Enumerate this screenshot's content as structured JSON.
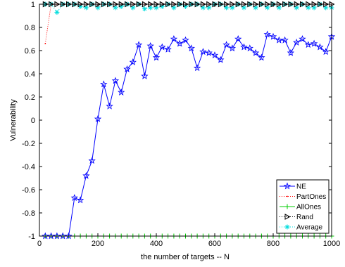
{
  "chart_data": {
    "type": "line",
    "xlabel": "the number of targets -- N",
    "ylabel": "Vulnerability",
    "xlim": [
      0,
      1000
    ],
    "ylim": [
      -1,
      1
    ],
    "xticks": [
      0,
      200,
      400,
      600,
      800,
      1000
    ],
    "yticks": [
      -1,
      -0.8,
      -0.6,
      -0.4,
      -0.2,
      0,
      0.2,
      0.4,
      0.6,
      0.8,
      1
    ],
    "xtick_labels": [
      "0",
      "200",
      "400",
      "600",
      "800",
      "1000"
    ],
    "ytick_labels": [
      "-1",
      "-0.8",
      "-0.6",
      "-0.4",
      "-0.2",
      "0",
      "0.2",
      "0.4",
      "0.6",
      "0.8",
      "1"
    ],
    "grid": false,
    "legend_position": "bottom-right",
    "x": [
      20,
      40,
      60,
      80,
      100,
      120,
      140,
      160,
      180,
      200,
      220,
      240,
      260,
      280,
      300,
      320,
      340,
      360,
      380,
      400,
      420,
      440,
      460,
      480,
      500,
      520,
      540,
      560,
      580,
      600,
      620,
      640,
      660,
      680,
      700,
      720,
      740,
      760,
      780,
      800,
      820,
      840,
      860,
      880,
      900,
      920,
      940,
      960,
      980,
      1000
    ],
    "series": [
      {
        "name": "NE",
        "color": "#0000ff",
        "marker": "star",
        "linestyle": "solid",
        "values": [
          -1,
          -1,
          -1,
          -1,
          -1,
          -0.67,
          -0.69,
          -0.48,
          -0.35,
          0.01,
          0.31,
          0.12,
          0.34,
          0.24,
          0.44,
          0.5,
          0.65,
          0.38,
          0.64,
          0.54,
          0.63,
          0.61,
          0.7,
          0.66,
          0.69,
          0.62,
          0.45,
          0.59,
          0.58,
          0.56,
          0.52,
          0.65,
          0.62,
          0.7,
          0.63,
          0.62,
          0.58,
          0.54,
          0.74,
          0.72,
          0.69,
          0.69,
          0.58,
          0.67,
          0.7,
          0.65,
          0.66,
          0.63,
          0.59,
          0.72
        ]
      },
      {
        "name": "PartOnes",
        "color": "#ff0000",
        "marker": "dot",
        "linestyle": "dotted",
        "values": [
          0.66,
          1,
          1,
          1,
          1,
          1,
          1,
          1,
          1,
          1,
          1,
          1,
          1,
          1,
          1,
          1,
          1,
          1,
          1,
          1,
          1,
          1,
          1,
          1,
          1,
          1,
          1,
          1,
          1,
          1,
          1,
          1,
          1,
          1,
          1,
          1,
          1,
          1,
          1,
          1,
          1,
          1,
          1,
          1,
          1,
          1,
          1,
          1,
          1,
          1
        ]
      },
      {
        "name": "AllOnes",
        "color": "#00cc00",
        "marker": "plus",
        "linestyle": "solid",
        "values": [
          -1,
          -1,
          -1,
          -1,
          -1,
          -1,
          -1,
          -1,
          -1,
          -1,
          -1,
          -1,
          -1,
          -1,
          -1,
          -1,
          -1,
          -1,
          -1,
          -1,
          -1,
          -1,
          -1,
          -1,
          -1,
          -1,
          -1,
          -1,
          -1,
          -1,
          -1,
          -1,
          -1,
          -1,
          -1,
          -1,
          -1,
          -1,
          -1,
          -1,
          -1,
          -1,
          -1,
          -1,
          -1,
          -1,
          -1,
          -1,
          -1,
          -1
        ]
      },
      {
        "name": "Rand",
        "color": "#000000",
        "marker": "triangle-right",
        "linestyle": "dotted",
        "values": [
          1,
          1,
          1,
          1,
          1,
          1,
          1,
          1,
          1,
          1,
          1,
          1,
          1,
          1,
          1,
          1,
          1,
          1,
          1,
          1,
          1,
          1,
          1,
          1,
          1,
          1,
          1,
          1,
          1,
          1,
          1,
          1,
          1,
          1,
          1,
          1,
          1,
          1,
          1,
          1,
          1,
          1,
          1,
          1,
          1,
          1,
          1,
          1,
          1,
          1
        ]
      },
      {
        "name": "Average",
        "color": "#00dddd",
        "marker": "asterisk",
        "linestyle": "dotted",
        "values": [
          1,
          1,
          0.93,
          1,
          1,
          1,
          0.98,
          0.97,
          1,
          0.97,
          1,
          1,
          0.97,
          0.98,
          1,
          0.97,
          1,
          0.96,
          0.97,
          0.97,
          0.98,
          1,
          0.97,
          1,
          0.98,
          1,
          1,
          0.97,
          0.97,
          1,
          1,
          0.97,
          0.97,
          1,
          0.97,
          1,
          0.97,
          1,
          0.97,
          1,
          0.97,
          1,
          1,
          0.97,
          1,
          0.97,
          0.97,
          1,
          0.97,
          0.97
        ]
      }
    ]
  }
}
